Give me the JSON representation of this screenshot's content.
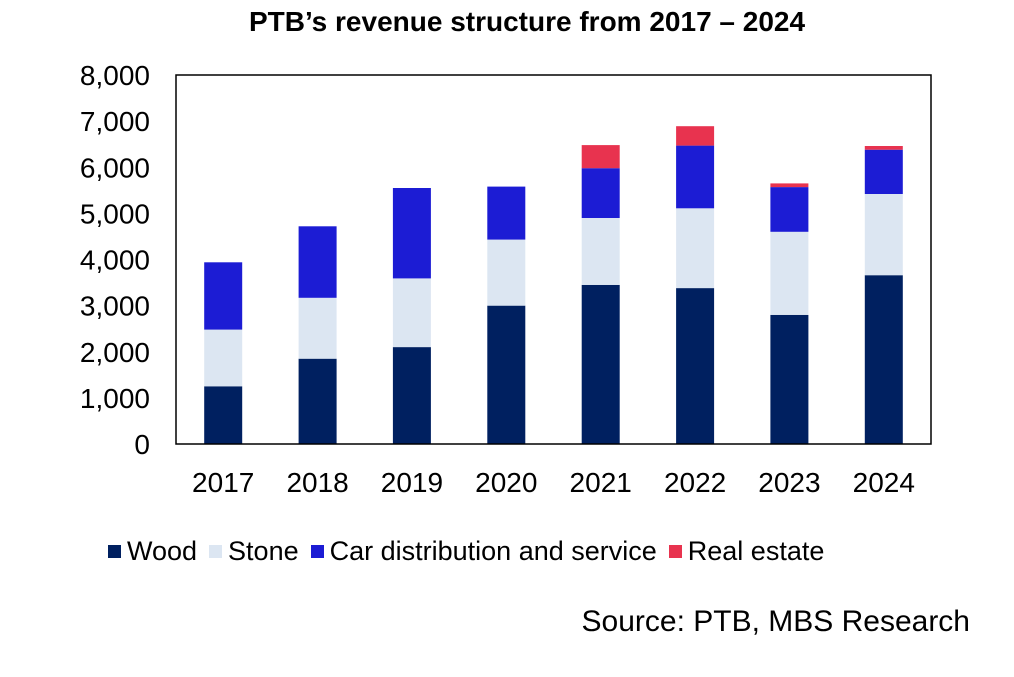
{
  "chart_data": {
    "type": "bar",
    "stacked": true,
    "title": "PTB’s revenue structure from 2017 – 2024",
    "categories": [
      "2017",
      "2018",
      "2019",
      "2020",
      "2021",
      "2022",
      "2023",
      "2024"
    ],
    "series": [
      {
        "name": "Wood",
        "color": "#002060",
        "values": [
          1250,
          1850,
          2100,
          3000,
          3450,
          3380,
          2800,
          3660
        ]
      },
      {
        "name": "Stone",
        "color": "#DCE6F2",
        "values": [
          1230,
          1320,
          1490,
          1430,
          1450,
          1730,
          1800,
          1760
        ]
      },
      {
        "name": "Car distribution and service",
        "color": "#1C1CD4",
        "values": [
          1460,
          1550,
          1960,
          1150,
          1080,
          1360,
          970,
          960
        ]
      },
      {
        "name": "Real estate",
        "color": "#E8334F",
        "values": [
          0,
          0,
          0,
          0,
          500,
          420,
          80,
          80
        ]
      }
    ],
    "yticks": [
      "0",
      "1,000",
      "2,000",
      "3,000",
      "4,000",
      "5,000",
      "6,000",
      "7,000",
      "8,000"
    ],
    "ylim": [
      0,
      8000
    ],
    "xlabel": "",
    "ylabel": "",
    "grid": false,
    "legend_position": "bottom"
  },
  "source_note": "Source: PTB, MBS Research"
}
